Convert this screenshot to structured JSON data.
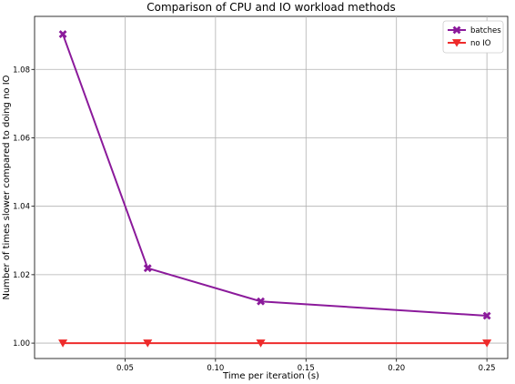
{
  "chart_data": {
    "type": "line",
    "title": "Comparison of CPU and IO workload methods",
    "xlabel": "Time per iteration (s)",
    "ylabel": "Number of times slower compared to doing no IO",
    "xlim": [
      0.0,
      0.2615
    ],
    "ylim": [
      0.9955,
      1.0955
    ],
    "xticks": [
      0.05,
      0.1,
      0.15,
      0.2,
      0.25
    ],
    "xtick_labels": [
      "0.05",
      "0.10",
      "0.15",
      "0.20",
      "0.25"
    ],
    "yticks": [
      1.0,
      1.02,
      1.04,
      1.06,
      1.08
    ],
    "ytick_labels": [
      "1.00",
      "1.02",
      "1.04",
      "1.06",
      "1.08"
    ],
    "grid": true,
    "legend_position": "top-right",
    "series": [
      {
        "name": "batches",
        "color": "#8b1a9b",
        "marker": "x-filled",
        "x": [
          0.015625,
          0.0625,
          0.125,
          0.25
        ],
        "y": [
          1.0903,
          1.0219,
          1.0122,
          1.008
        ]
      },
      {
        "name": "no IO",
        "color": "#ee2b2b",
        "marker": "triangle-down",
        "x": [
          0.015625,
          0.0625,
          0.125,
          0.25
        ],
        "y": [
          1.0,
          1.0,
          1.0,
          1.0
        ]
      }
    ]
  }
}
